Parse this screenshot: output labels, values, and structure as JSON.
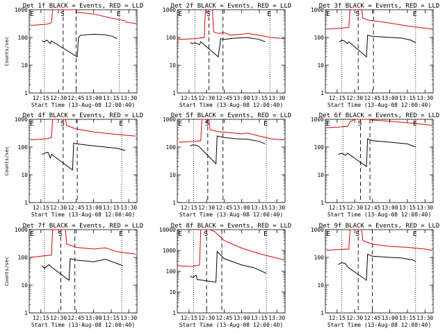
{
  "figure": {
    "background": "#ffffff",
    "colors": {
      "events": "#000000",
      "lld": "#dd0000",
      "axes": "#000000"
    }
  },
  "chart_data": [
    {
      "type": "line",
      "title": "Det 1f BLACK = Events, RED = LLD",
      "xlabel": "Start Time (13-Aug-08 12:00:40)",
      "ylabel": "Counts/sec",
      "yscale": "log",
      "xlim": [
        "12:05",
        "13:37"
      ],
      "ylim": [
        1,
        1000
      ],
      "x_tick_labels": [
        "12:15",
        "12:30",
        "12:45",
        "13:00",
        "13:15",
        "13:30"
      ],
      "y_tick_labels": [
        "1",
        "10",
        "100",
        "1000"
      ],
      "marker_labels": [
        "E",
        "S",
        "E"
      ],
      "dotted_lines": [
        "12:18",
        "13:22"
      ],
      "dashed_lines": [
        "12:34",
        "12:45"
      ],
      "series": [
        {
          "x": [
            "12:06",
            "12:20",
            "12:24",
            "12:25",
            "12:28",
            "12:29",
            "12:31",
            "12:34",
            "12:38",
            "12:45",
            "12:46",
            "13:00",
            "13:15",
            "13:27",
            "13:28",
            "13:36"
          ],
          "y": [
            270,
            300,
            340,
            1000,
            1000,
            1000,
            1000,
            1000,
            1000,
            1000,
            800,
            700,
            500,
            400,
            350,
            320
          ]
        },
        {
          "x": [
            "12:16",
            "12:18",
            "12:20",
            "12:23",
            "12:24",
            "12:46",
            "12:47",
            "12:49",
            "13:00",
            "13:10",
            "13:16",
            "13:20"
          ],
          "y": [
            75,
            70,
            80,
            60,
            75,
            20,
            100,
            120,
            130,
            125,
            110,
            90
          ]
        }
      ]
    },
    {
      "type": "line",
      "title": "Det 2f BLACK = Events, RED = LLD",
      "xlabel": "Start Time (13-Aug-08 12:00:40)",
      "ylabel": "",
      "yscale": "log",
      "xlim": [
        "12:05",
        "13:37"
      ],
      "ylim": [
        1,
        1000
      ],
      "x_tick_labels": [
        "12:15",
        "12:30",
        "12:45",
        "13:00",
        "13:15",
        "13:30"
      ],
      "y_tick_labels": [
        "1",
        "10",
        "100",
        "1000"
      ],
      "marker_labels": [
        "E",
        "S",
        "E"
      ],
      "dotted_lines": [
        "12:20",
        "13:24"
      ],
      "dashed_lines": [
        "12:32",
        "12:44"
      ],
      "series": [
        {
          "x": [
            "12:06",
            "12:20",
            "12:24",
            "12:28",
            "12:29",
            "12:35",
            "12:36",
            "12:40",
            "12:45",
            "12:50",
            "13:00",
            "13:05",
            "13:15",
            "13:25",
            "13:36"
          ],
          "y": [
            85,
            90,
            95,
            100,
            1000,
            1000,
            160,
            140,
            150,
            120,
            130,
            140,
            120,
            100,
            90
          ]
        },
        {
          "x": [
            "12:16",
            "12:18",
            "12:20",
            "12:24",
            "12:25",
            "12:40",
            "12:42",
            "12:45",
            "12:55",
            "13:05",
            "13:15",
            "13:20"
          ],
          "y": [
            65,
            60,
            65,
            55,
            70,
            20,
            90,
            85,
            95,
            100,
            85,
            70
          ]
        }
      ]
    },
    {
      "type": "line",
      "title": "Det 3f BLACK = Events, RED = LLD",
      "xlabel": "Start Time (13-Aug-08 12:00:40)",
      "ylabel": "",
      "yscale": "log",
      "xlim": [
        "12:05",
        "13:37"
      ],
      "ylim": [
        1,
        1000
      ],
      "x_tick_labels": [
        "12:15",
        "12:30",
        "12:45",
        "13:00",
        "13:15",
        "13:30"
      ],
      "y_tick_labels": [
        "1",
        "10",
        "100",
        "1000"
      ],
      "marker_labels": [
        "E",
        "S",
        "E"
      ],
      "dotted_lines": [
        "12:19",
        "13:22"
      ],
      "dashed_lines": [
        "12:33",
        "12:46"
      ],
      "series": [
        {
          "x": [
            "12:06",
            "12:15",
            "12:25",
            "12:26",
            "12:30",
            "12:31",
            "12:36",
            "12:37",
            "12:42",
            "12:50",
            "13:00",
            "13:15",
            "13:36"
          ],
          "y": [
            200,
            210,
            230,
            1000,
            1000,
            1000,
            1000,
            500,
            420,
            380,
            330,
            260,
            200
          ]
        },
        {
          "x": [
            "12:17",
            "12:19",
            "12:21",
            "12:24",
            "12:25",
            "12:40",
            "12:41",
            "12:45",
            "13:00",
            "13:10",
            "13:18",
            "13:22"
          ],
          "y": [
            70,
            80,
            75,
            60,
            70,
            20,
            120,
            110,
            100,
            95,
            80,
            65
          ]
        }
      ]
    },
    {
      "type": "line",
      "title": "Det 4f BLACK = Events, RED = LLD",
      "xlabel": "Start Time (13-Aug-08 12:00:40)",
      "ylabel": "Counts/sec",
      "yscale": "log",
      "xlim": [
        "12:05",
        "13:37"
      ],
      "ylim": [
        1,
        1000
      ],
      "x_tick_labels": [
        "12:15",
        "12:30",
        "12:45",
        "13:00",
        "13:15",
        "13:30"
      ],
      "y_tick_labels": [
        "1",
        "10",
        "100",
        "1000"
      ],
      "marker_labels": [
        "E",
        "S",
        "E"
      ],
      "dotted_lines": [
        "12:18",
        "13:24"
      ],
      "dashed_lines": [
        "12:34",
        "12:46"
      ],
      "series": [
        {
          "x": [
            "12:06",
            "12:20",
            "12:24",
            "12:25",
            "12:30",
            "12:31",
            "12:36",
            "12:37",
            "12:45",
            "13:00",
            "13:15",
            "13:30",
            "13:36"
          ],
          "y": [
            180,
            200,
            220,
            1000,
            1000,
            1000,
            1000,
            600,
            450,
            350,
            300,
            260,
            250
          ]
        },
        {
          "x": [
            "12:16",
            "12:18",
            "12:21",
            "12:23",
            "12:24",
            "12:42",
            "12:43",
            "12:46",
            "13:00",
            "13:10",
            "13:20",
            "13:27"
          ],
          "y": [
            55,
            60,
            65,
            40,
            55,
            15,
            140,
            130,
            110,
            100,
            90,
            75
          ]
        }
      ]
    },
    {
      "type": "line",
      "title": "Det 5f BLACK = Events, RED = LLD",
      "xlabel": "Start Time (13-Aug-08 12:00:40)",
      "ylabel": "",
      "yscale": "log",
      "xlim": [
        "12:05",
        "13:37"
      ],
      "ylim": [
        1,
        1000
      ],
      "x_tick_labels": [
        "12:15",
        "12:30",
        "12:45",
        "13:00",
        "13:15",
        "13:30"
      ],
      "y_tick_labels": [
        "1",
        "10",
        "100",
        "1000"
      ],
      "marker_labels": [
        "E",
        "S",
        "E"
      ],
      "dotted_lines": [
        "12:19",
        "13:21"
      ],
      "dashed_lines": [
        "12:31",
        "12:44"
      ],
      "series": [
        {
          "x": [
            "12:06",
            "12:20",
            "12:25",
            "12:26",
            "12:32",
            "12:33",
            "12:40",
            "12:50",
            "13:00",
            "13:05",
            "13:15",
            "13:25",
            "13:36"
          ],
          "y": [
            150,
            160,
            170,
            1000,
            1000,
            420,
            360,
            330,
            300,
            320,
            250,
            200,
            180
          ]
        },
        {
          "x": [
            "12:16",
            "12:18",
            "12:22",
            "12:24",
            "12:38",
            "12:39",
            "12:45",
            "12:55",
            "13:05",
            "13:15",
            "13:20"
          ],
          "y": [
            110,
            120,
            115,
            100,
            25,
            250,
            220,
            200,
            190,
            160,
            130
          ]
        }
      ]
    },
    {
      "type": "line",
      "title": "Det 6f BLACK = Events, RED = LLD",
      "xlabel": "Start Time (13-Aug-08 12:00:40)",
      "ylabel": "",
      "yscale": "log",
      "xlim": [
        "12:05",
        "13:37"
      ],
      "ylim": [
        1,
        1000
      ],
      "x_tick_labels": [
        "12:15",
        "12:30",
        "12:45",
        "13:00",
        "13:15",
        "13:30"
      ],
      "y_tick_labels": [
        "1",
        "10",
        "100",
        "1000"
      ],
      "marker_labels": [
        "E",
        "S",
        "E"
      ],
      "dotted_lines": [
        "12:20",
        "13:22"
      ],
      "dashed_lines": [
        "12:35",
        "12:43"
      ],
      "series": [
        {
          "x": [
            "12:06",
            "12:15",
            "12:24",
            "12:26",
            "12:28",
            "12:30",
            "12:32",
            "12:43",
            "12:44",
            "13:00",
            "13:15",
            "13:30",
            "13:36"
          ],
          "y": [
            500,
            520,
            560,
            800,
            900,
            1000,
            1000,
            1000,
            950,
            850,
            750,
            650,
            600
          ]
        },
        {
          "x": [
            "12:16",
            "12:19",
            "12:22",
            "12:24",
            "12:40",
            "12:41",
            "12:45",
            "13:00",
            "13:15",
            "13:22"
          ],
          "y": [
            55,
            60,
            50,
            60,
            20,
            200,
            170,
            150,
            130,
            100
          ]
        }
      ]
    },
    {
      "type": "line",
      "title": "Det 7f BLACK = Events, RED = LLD",
      "xlabel": "Start Time (13-Aug-08 12:00:40)",
      "ylabel": "Counts/sec",
      "yscale": "log",
      "xlim": [
        "12:05",
        "13:37"
      ],
      "ylim": [
        1,
        1000
      ],
      "x_tick_labels": [
        "12:15",
        "12:30",
        "12:45",
        "13:00",
        "13:15",
        "13:30"
      ],
      "y_tick_labels": [
        "1",
        "10",
        "100",
        "1000"
      ],
      "marker_labels": [
        "E",
        "S",
        "E"
      ],
      "dotted_lines": [
        "12:18",
        "13:24"
      ],
      "dashed_lines": [
        "12:32",
        "12:44"
      ],
      "series": [
        {
          "x": [
            "12:06",
            "12:15",
            "12:24",
            "12:25",
            "12:30",
            "12:31",
            "12:36",
            "12:37",
            "12:45",
            "13:00",
            "13:10",
            "13:20",
            "13:36"
          ],
          "y": [
            100,
            110,
            120,
            1000,
            1000,
            1000,
            1000,
            300,
            230,
            200,
            220,
            160,
            130
          ]
        },
        {
          "x": [
            "12:16",
            "12:18",
            "12:22",
            "12:24",
            "12:39",
            "12:40",
            "12:45",
            "13:00",
            "13:10",
            "13:20",
            "13:25"
          ],
          "y": [
            50,
            40,
            55,
            45,
            15,
            90,
            80,
            70,
            85,
            60,
            50
          ]
        }
      ]
    },
    {
      "type": "line",
      "title": "Det 8f BLACK = Events, RED = LLD",
      "xlabel": "Start Time (13-Aug-08 12:00:40)",
      "ylabel": "",
      "yscale": "log",
      "xlim": [
        "12:05",
        "13:37"
      ],
      "ylim": [
        1,
        10000
      ],
      "x_tick_labels": [
        "12:15",
        "12:30",
        "12:45",
        "13:00",
        "13:15",
        "13:30"
      ],
      "y_tick_labels": [
        "1",
        "10",
        "100",
        "1000",
        "10000"
      ],
      "marker_labels": [
        "E",
        "S",
        "E"
      ],
      "dotted_lines": [
        "12:19",
        "13:21"
      ],
      "dashed_lines": [
        "12:30",
        "12:43"
      ],
      "series": [
        {
          "x": [
            "12:06",
            "12:18",
            "12:24",
            "12:25",
            "12:32",
            "12:33",
            "12:37",
            "12:45",
            "13:00",
            "13:15",
            "13:25",
            "13:36"
          ],
          "y": [
            180,
            170,
            200,
            10000,
            10000,
            10000,
            8000,
            3000,
            1300,
            700,
            500,
            350
          ]
        },
        {
          "x": [
            "12:16",
            "12:18",
            "12:21",
            "12:22",
            "12:38",
            "12:39",
            "12:45",
            "13:00",
            "13:10",
            "13:21"
          ],
          "y": [
            60,
            50,
            65,
            40,
            30,
            900,
            400,
            200,
            150,
            80
          ]
        }
      ]
    },
    {
      "type": "line",
      "title": "Det 9f BLACK = Events, RED = LLD",
      "xlabel": "Start Time (13-Aug-08 12:00:40)",
      "ylabel": "",
      "yscale": "log",
      "xlim": [
        "12:05",
        "13:37"
      ],
      "ylim": [
        1,
        1000
      ],
      "x_tick_labels": [
        "12:15",
        "12:30",
        "12:45",
        "13:00",
        "13:15",
        "13:30"
      ],
      "y_tick_labels": [
        "1",
        "10",
        "100",
        "1000"
      ],
      "marker_labels": [
        "E",
        "S",
        "E"
      ],
      "dotted_lines": [
        "12:19",
        "13:22"
      ],
      "dashed_lines": [
        "12:33",
        "12:45"
      ],
      "series": [
        {
          "x": [
            "12:06",
            "12:15",
            "12:25",
            "12:26",
            "12:32",
            "12:33",
            "12:36",
            "12:37",
            "12:45",
            "13:00",
            "13:15",
            "13:30",
            "13:36"
          ],
          "y": [
            180,
            190,
            200,
            1000,
            1000,
            1000,
            1000,
            400,
            300,
            250,
            230,
            200,
            180
          ]
        },
        {
          "x": [
            "12:16",
            "12:19",
            "12:22",
            "12:24",
            "12:40",
            "12:41",
            "12:45",
            "13:00",
            "13:10",
            "13:20",
            "13:22"
          ],
          "y": [
            55,
            65,
            60,
            45,
            15,
            130,
            110,
            100,
            95,
            80,
            70
          ]
        }
      ]
    }
  ]
}
